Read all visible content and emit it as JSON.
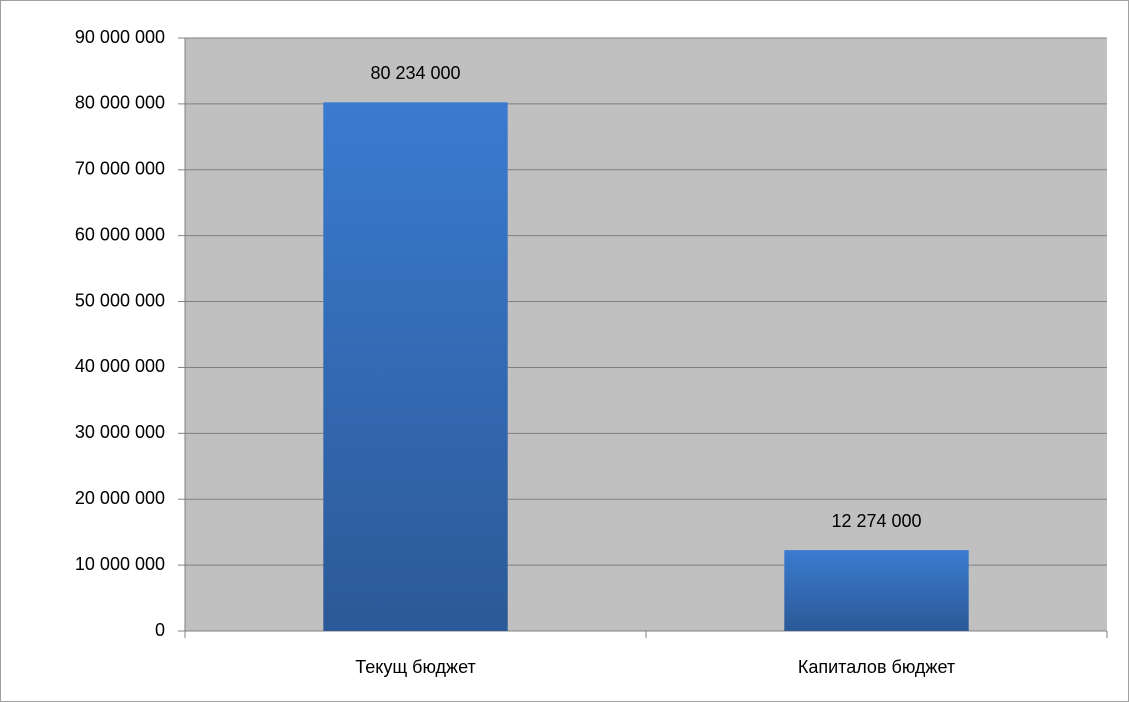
{
  "chart_data": {
    "type": "bar",
    "categories": [
      "Текущ бюджет",
      "Капиталов бюджет"
    ],
    "values": [
      80234000,
      12274000
    ],
    "value_labels": [
      "80 234 000",
      "12 274 000"
    ],
    "color": "#3a7bd0",
    "ylim": [
      0,
      90000000
    ],
    "yticks": [
      0,
      {
        "value": 10000000,
        "label": "10 000 000"
      },
      {
        "value": 20000000,
        "label": "20 000 000"
      },
      {
        "value": 30000000,
        "label": "30 000 000"
      },
      {
        "value": 40000000,
        "label": "40 000 000"
      },
      {
        "value": 50000000,
        "label": "50 000 000"
      },
      {
        "value": 60000000,
        "label": "60 000 000"
      },
      {
        "value": 70000000,
        "label": "70 000 000"
      },
      {
        "value": 80000000,
        "label": "80 000 000"
      },
      {
        "value": 90000000,
        "label": "90 000 000"
      }
    ],
    "grid": true
  }
}
